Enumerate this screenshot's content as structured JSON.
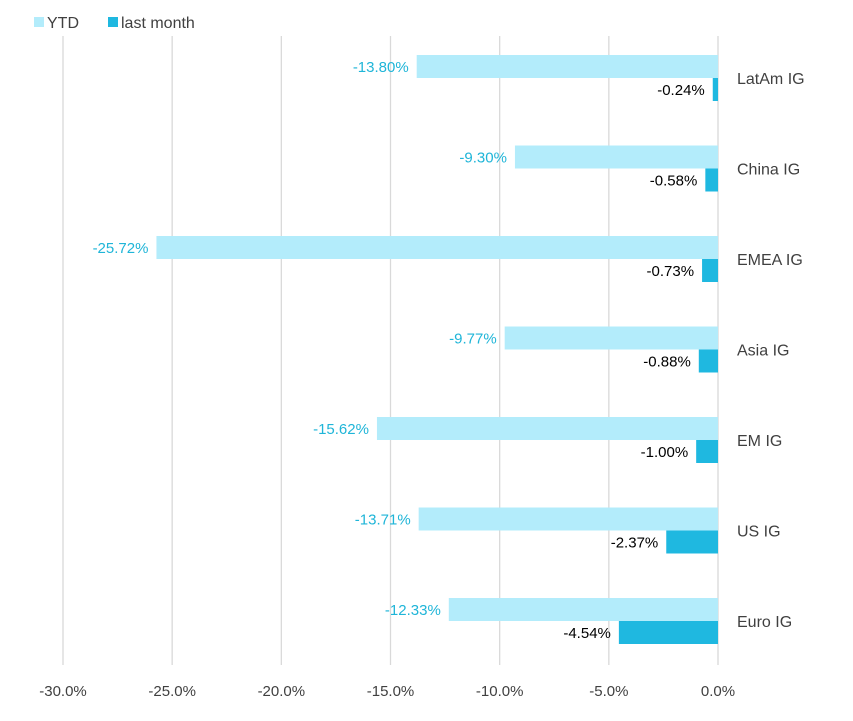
{
  "chart_data": {
    "type": "bar",
    "orientation": "horizontal",
    "categories": [
      "LatAm IG",
      "China IG",
      "EMEA IG",
      "Asia IG",
      "EM IG",
      "US IG",
      "Euro IG"
    ],
    "series": [
      {
        "name": "YTD",
        "color": "#b3ecfb",
        "label_color": "#1fb5d8",
        "values": [
          -13.8,
          -9.3,
          -25.72,
          -9.77,
          -15.62,
          -13.71,
          -12.33
        ],
        "labels": [
          "-13.80%",
          "-9.30%",
          "-25.72%",
          "-9.77%",
          "-15.62%",
          "-13.71%",
          "-12.33%"
        ]
      },
      {
        "name": "last month",
        "color": "#1fb8e0",
        "label_color": "#000000",
        "values": [
          -0.24,
          -0.58,
          -0.73,
          -0.88,
          -1.0,
          -2.37,
          -4.54
        ],
        "labels": [
          "-0.24%",
          "-0.58%",
          "-0.73%",
          "-0.88%",
          "-1.00%",
          "-2.37%",
          "-4.54%"
        ]
      }
    ],
    "xlim": [
      -30,
      0
    ],
    "xticks": [
      -30,
      -25,
      -20,
      -15,
      -10,
      -5,
      0
    ],
    "xtick_labels": [
      "-30.0%",
      "-25.0%",
      "-20.0%",
      "-15.0%",
      "-10.0%",
      "-5.0%",
      "0.0%"
    ],
    "grid": true,
    "legend": "top-left"
  }
}
